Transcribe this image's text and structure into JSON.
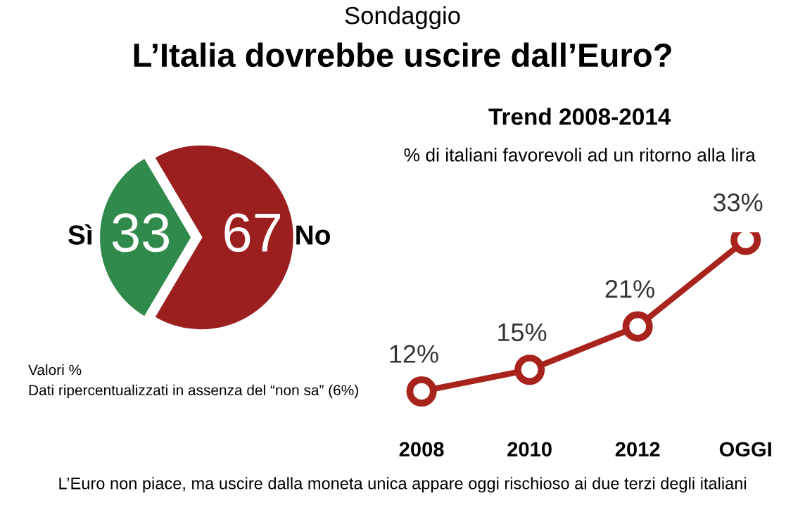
{
  "chart_data": [
    {
      "type": "pie",
      "title": "Sondaggio",
      "subtitle": "L’Italia dovrebbe uscire dall’Euro?",
      "categories": [
        "Sì",
        "No"
      ],
      "values": [
        33,
        67
      ],
      "colors": [
        "#2f8a4c",
        "#9c1f1f"
      ],
      "data_labels": true,
      "annotations": [
        "Valori %",
        "Dati ripercentualizzati in assenza del “non sa” (6%)",
        "L’Euro non piace, ma uscire dalla moneta unica appare oggi rischioso ai due terzi degli italiani"
      ]
    },
    {
      "type": "line",
      "title": "Trend 2008-2014",
      "subtitle": "% di italiani favorevoli ad un ritorno alla lira",
      "categories": [
        "2008",
        "2010",
        "2012",
        "OGGI"
      ],
      "series": [
        {
          "color": "#a8231c",
          "values": [
            12,
            15,
            21,
            33
          ],
          "value_labels": [
            "12%",
            "15%",
            "21%",
            "33%"
          ]
        }
      ],
      "marker": "circle",
      "line_style": "solid",
      "grid": false,
      "legend": false
    }
  ]
}
